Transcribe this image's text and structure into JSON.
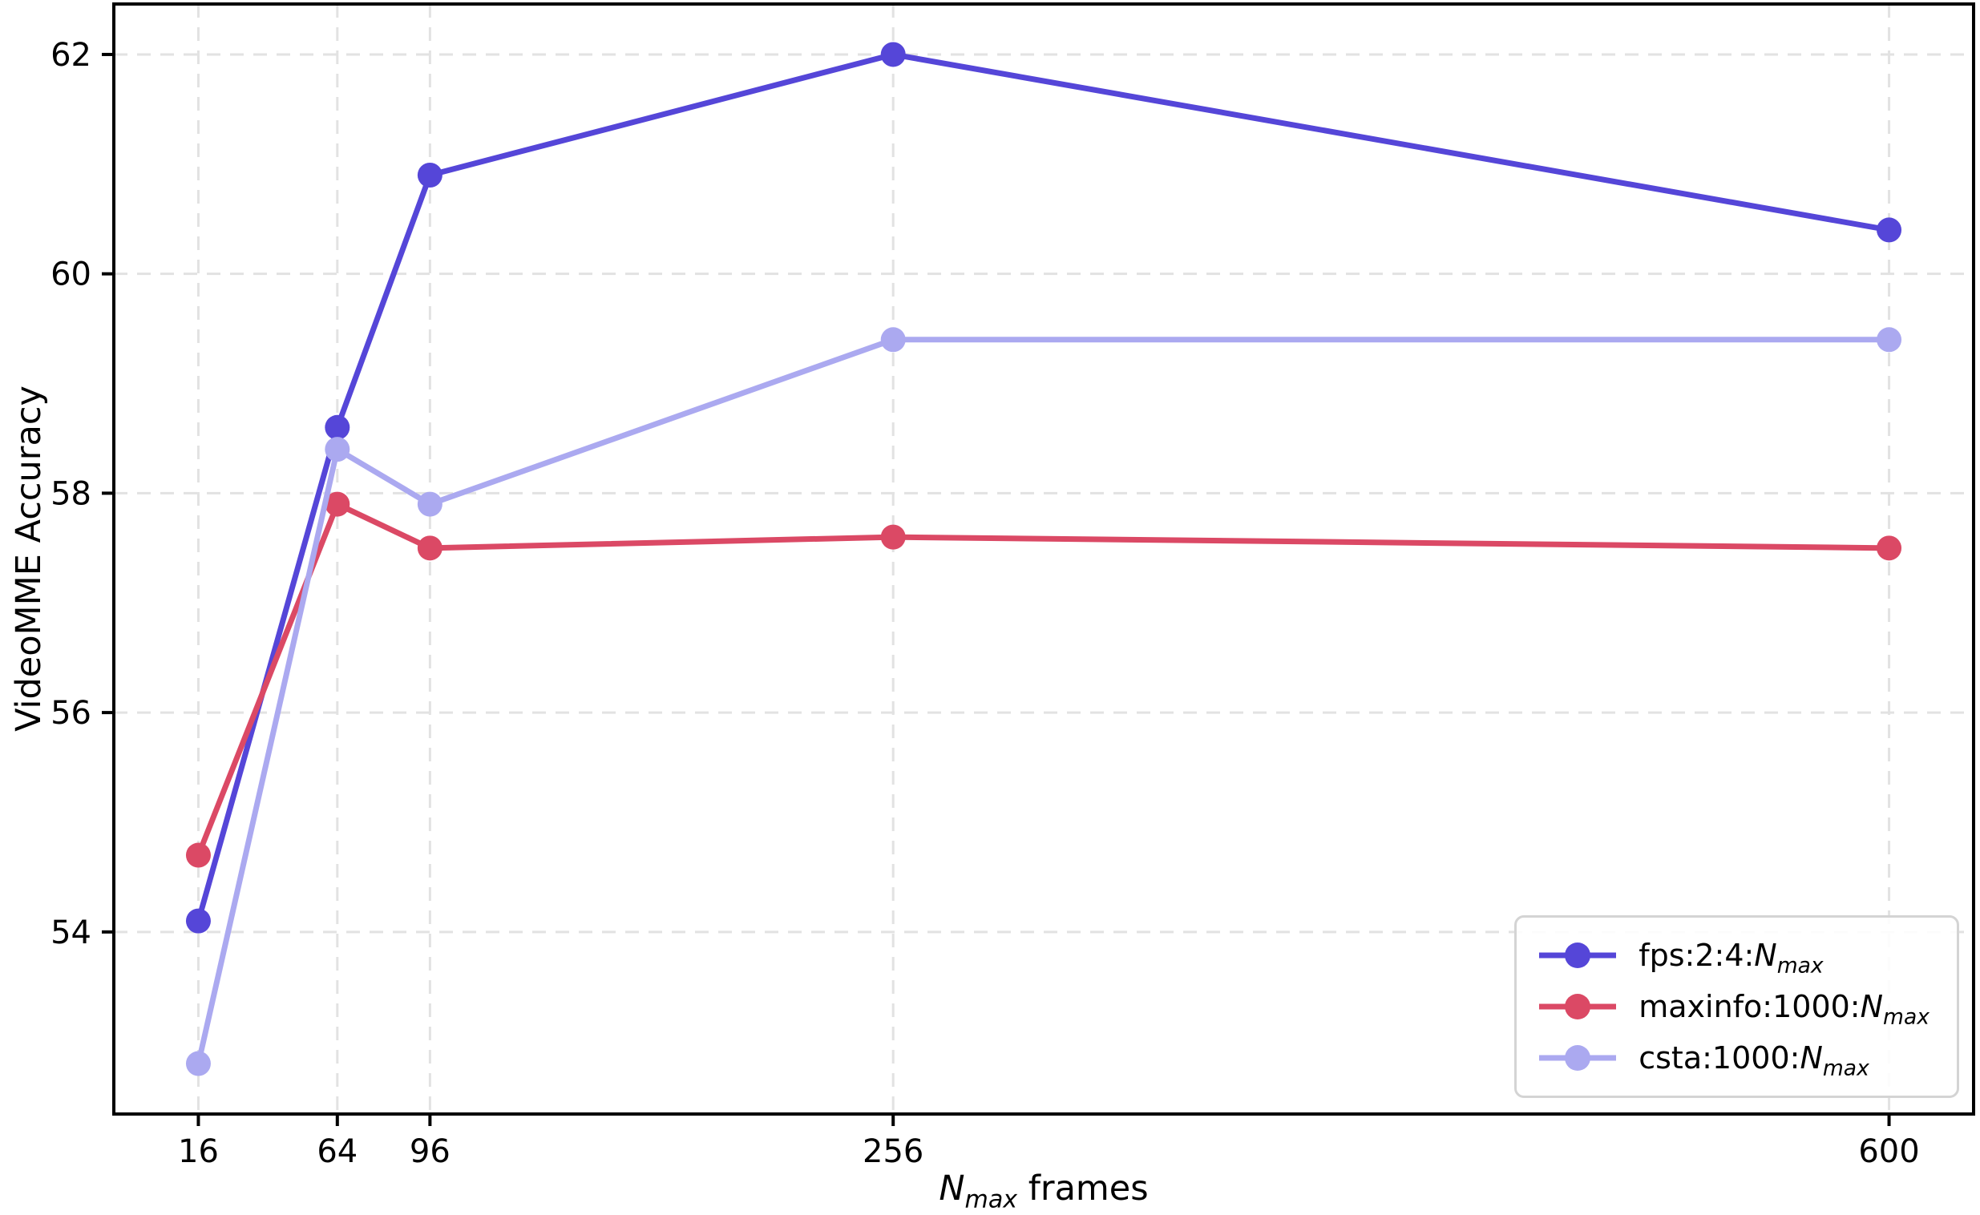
{
  "figure": {
    "background": "#ffffff",
    "frame_color": "#000000",
    "ylabel": "VideoMME Accuracy",
    "xlabel": {
      "var": "N",
      "sub": "max",
      "rest": " frames"
    }
  },
  "chart_data": {
    "type": "line",
    "title": "",
    "xlabel": "N_max frames",
    "ylabel": "VideoMME Accuracy",
    "x": [
      16,
      64,
      96,
      256,
      600
    ],
    "x_tick_labels": [
      "16",
      "64",
      "96",
      "256",
      "600"
    ],
    "y_ticks": [
      54,
      56,
      58,
      60,
      62
    ],
    "y_tick_labels": [
      "54",
      "56",
      "58",
      "60",
      "62"
    ],
    "xlim": [
      -13.2,
      629.2
    ],
    "ylim": [
      52.34,
      62.46
    ],
    "grid": true,
    "grid_color": "#e2e2e2",
    "legend_position": "lower right",
    "series": [
      {
        "name": "fps:2:4:N_max",
        "label_prefix": "fps:2:4:",
        "label_var": "N",
        "label_sub": "max",
        "color": "#5546d8",
        "values": [
          54.1,
          58.6,
          60.9,
          62.0,
          60.4
        ]
      },
      {
        "name": "maxinfo:1000:N_max",
        "label_prefix": "maxinfo:1000:",
        "label_var": "N",
        "label_sub": "max",
        "color": "#db4965",
        "values": [
          54.7,
          57.9,
          57.5,
          57.6,
          57.5
        ]
      },
      {
        "name": "csta:1000:N_max",
        "label_prefix": "csta:1000:",
        "label_var": "N",
        "label_sub": "max",
        "color": "#aba9f0",
        "values": [
          52.8,
          58.4,
          57.9,
          59.4,
          59.4
        ]
      }
    ]
  }
}
